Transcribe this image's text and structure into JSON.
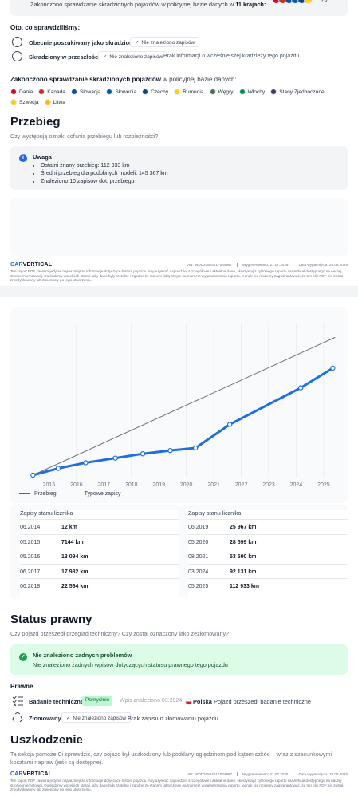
{
  "stolen_check": {
    "top_text": "Zakończono sprawdzanie skradzionych pojazdów w policyjnej bazie danych w",
    "top_count": "11 krajach:",
    "more": "+5",
    "checked_title": "Oto, co sprawdziliśmy:",
    "rows": [
      {
        "label": "Obecnie poszukiwany jako skradziony",
        "status": "Nie znaleziono zapisów",
        "note": ""
      },
      {
        "label": "Skradziony w przeszłości",
        "status": "Nie znaleziono zapisów",
        "note": "Brak informacji o wcześniejszej kradzieży tego pojazdu."
      }
    ],
    "db_title_bold": "Zakończono sprawdzanie skradzionych pojazdów",
    "db_title_rest": "w policyjnej bazie danych:",
    "countries": [
      {
        "name": "Dania",
        "color": "#c8102e"
      },
      {
        "name": "Kanada",
        "color": "#d52b1e"
      },
      {
        "name": "Słowacja",
        "color": "#0b4ea2"
      },
      {
        "name": "Słowenia",
        "color": "#005da4"
      },
      {
        "name": "Czechy",
        "color": "#11457e"
      },
      {
        "name": "Rumunia",
        "color": "#fcd116"
      },
      {
        "name": "Węgry",
        "color": "#477050"
      },
      {
        "name": "Włochy",
        "color": "#009246"
      },
      {
        "name": "Stany Zjednoczone",
        "color": "#3c3b6e"
      },
      {
        "name": "Szwecja",
        "color": "#fecc02"
      },
      {
        "name": "Litwa",
        "color": "#fdb913"
      }
    ]
  },
  "mileage": {
    "title": "Przebieg",
    "question": "Czy występują oznaki cofania przebiegu lub rozbieżności?",
    "info_title": "Uwaga",
    "info_items": [
      "Ostatni znany przebieg: 112 933 km",
      "Średni przebieg dla podobnych modeli: 145 367 km",
      "Znaleziono 10 zapisów dot. przebiegu"
    ],
    "legend_main": "Przebieg",
    "legend_typical": "Typowe zapisy",
    "table_title": "Zapisy stanu licznika",
    "records_left": [
      {
        "date": "06.2014",
        "km": "12 km"
      },
      {
        "date": "05.2015",
        "km": "7144 km"
      },
      {
        "date": "05.2016",
        "km": "13 094 km"
      },
      {
        "date": "06.2017",
        "km": "17 982 km"
      },
      {
        "date": "06.2018",
        "km": "22 564 km"
      }
    ],
    "records_right": [
      {
        "date": "06.2019",
        "km": "25 967 km"
      },
      {
        "date": "05.2020",
        "km": "28 599 km"
      },
      {
        "date": "08.2021",
        "km": "53 500 km"
      },
      {
        "date": "03.2024",
        "km": "92 131 km"
      },
      {
        "date": "05.2025",
        "km": "112 933 km"
      }
    ]
  },
  "chart_data": {
    "type": "line",
    "x_ticks": [
      "2015",
      "2016",
      "2017",
      "2018",
      "2019",
      "2020",
      "2021",
      "2022",
      "2023",
      "2024",
      "2025"
    ],
    "series": [
      {
        "name": "Przebieg",
        "color": "#1d6fe0",
        "points": [
          [
            "06.2014",
            12
          ],
          [
            "05.2015",
            7144
          ],
          [
            "05.2016",
            13094
          ],
          [
            "06.2017",
            17982
          ],
          [
            "06.2018",
            22564
          ],
          [
            "06.2019",
            25967
          ],
          [
            "05.2020",
            28599
          ],
          [
            "08.2021",
            53500
          ],
          [
            "03.2024",
            92131
          ],
          [
            "05.2025",
            112933
          ]
        ]
      },
      {
        "name": "Typowe zapisy",
        "color": "#6b7280",
        "points": [
          [
            "06.2014",
            0
          ],
          [
            "06.2025",
            145367
          ]
        ]
      }
    ],
    "grid": true
  },
  "footer": {
    "logo_a": "CAR",
    "logo_b": "VERTICAL",
    "vin": "VIN: WDD2050401F034867",
    "generated": "Wygenerowano: 21.07.2025",
    "expires": "Data wygaśnięcia: 20.08.2025",
    "disclaimer": "Ten raport PDF zawiera jedynie najważniejsze informacje dotyczące historii pojazdu. Aby uzyskać najbardziej szczegółowe i aktualne dane, skorzystaj z cyfrowego raportu carVertical dostępnego na naszej stronie internetowej. Dokładamy wszelkich starań, aby dane były rzetelne i zgodne ze stanem faktycznym na moment wygenerowania raportu, jednak nie możemy zagwarantować, że ten plik PDF nie został zmodyfikowany lub zmieniony po jego utworzeniu."
  },
  "legal": {
    "title": "Status prawny",
    "question": "Czy pojazd przeszedł przegląd techniczny? Czy został oznaczony jako zezłomowany?",
    "ok_title": "Nie znaleziono żadnych problemów",
    "ok_text": "Nie znaleziono żadnych wpisów dotyczących statusu prawnego tego pojazdu",
    "section": "Prawne",
    "inspection_label": "Badanie techniczne",
    "inspection_status": "Pomyślnie",
    "inspection_found": "Wpis znaleziono 03.2024",
    "inspection_country": "Polska",
    "inspection_note": "Pojazd przeszedł badanie techniczne",
    "scrap_label": "Złomowany",
    "scrap_status": "Nie znaleziono zapisów",
    "scrap_note": "Brak zapisu o złomowaniu pojazdu"
  },
  "damage": {
    "title": "Uszkodzenie",
    "question": "Ta sekcja pomoże Ci sprawdzić, czy pojazd był uszkodzony lub poddany oględzinom pod kątem szkód – wraz z szacunkowymi kosztami napraw (jeśli są dostępne)."
  }
}
